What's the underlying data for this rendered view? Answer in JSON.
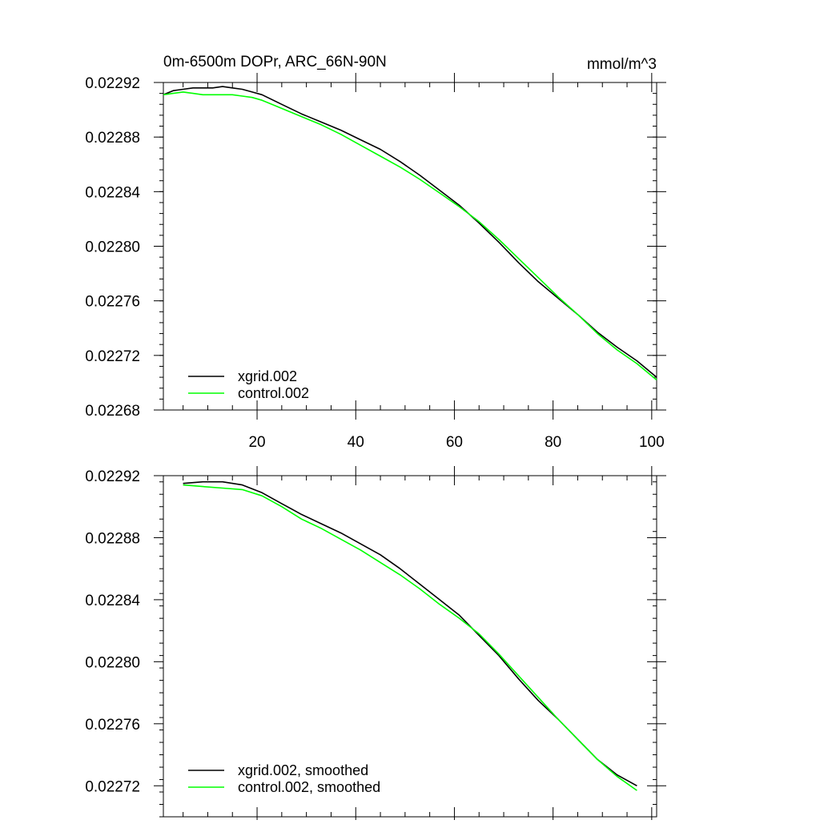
{
  "chart_data": [
    {
      "type": "line",
      "title": "0m-6500m DOPr, ARC_66N-90N",
      "units": "mmol/m^3",
      "xlabel": "",
      "ylabel": "",
      "xlim": [
        1,
        101
      ],
      "ylim": [
        0.02268,
        0.02292
      ],
      "xticks": [
        20,
        40,
        60,
        80,
        100
      ],
      "xtick_labels": [
        "20",
        "40",
        "60",
        "80",
        "100"
      ],
      "yticks": [
        0.02268,
        0.02272,
        0.02276,
        0.0228,
        0.02284,
        0.02288,
        0.02292
      ],
      "ytick_labels": [
        "0.02268",
        "0.02272",
        "0.02276",
        "0.02280",
        "0.02284",
        "0.02288",
        "0.02292"
      ],
      "legend": "bottom-left",
      "series": [
        {
          "name": "xgrid.002",
          "color": "#000000",
          "x": [
            1,
            3,
            5,
            7,
            9,
            11,
            13,
            15,
            17,
            19,
            21,
            25,
            29,
            33,
            37,
            41,
            45,
            49,
            53,
            57,
            61,
            65,
            69,
            73,
            77,
            81,
            85,
            89,
            93,
            97,
            101
          ],
          "y": [
            0.022911,
            0.022914,
            0.022915,
            0.022916,
            0.022916,
            0.022916,
            0.022917,
            0.022916,
            0.022915,
            0.022913,
            0.022911,
            0.022904,
            0.022897,
            0.022891,
            0.022885,
            0.022878,
            0.022871,
            0.022862,
            0.022852,
            0.022841,
            0.02283,
            0.022817,
            0.022803,
            0.022788,
            0.022774,
            0.022762,
            0.02275,
            0.022737,
            0.022726,
            0.022716,
            0.022704
          ]
        },
        {
          "name": "control.002",
          "color": "#00ff00",
          "x": [
            1,
            3,
            5,
            7,
            9,
            11,
            13,
            15,
            17,
            19,
            21,
            25,
            29,
            33,
            37,
            41,
            45,
            49,
            53,
            57,
            61,
            65,
            69,
            73,
            77,
            81,
            85,
            89,
            93,
            97,
            101
          ],
          "y": [
            0.022911,
            0.022912,
            0.022913,
            0.022912,
            0.022911,
            0.022911,
            0.022911,
            0.022911,
            0.02291,
            0.022909,
            0.022907,
            0.022901,
            0.022895,
            0.022889,
            0.022882,
            0.022874,
            0.022866,
            0.022858,
            0.022849,
            0.022839,
            0.022829,
            0.022818,
            0.022805,
            0.022791,
            0.022777,
            0.022763,
            0.02275,
            0.022736,
            0.022724,
            0.022714,
            0.022702
          ]
        }
      ]
    },
    {
      "type": "line",
      "title": "",
      "xlabel": "",
      "ylabel": "",
      "xlim": [
        1,
        101
      ],
      "ylim": [
        0.0227,
        0.02292
      ],
      "xticks": [
        20,
        40,
        60,
        80,
        100
      ],
      "xtick_labels": [],
      "yticks": [
        0.02272,
        0.02276,
        0.0228,
        0.02284,
        0.02288,
        0.02292
      ],
      "ytick_labels": [
        "0.02272",
        "0.02276",
        "0.02280",
        "0.02284",
        "0.02288",
        "0.02292"
      ],
      "legend": "bottom-left",
      "series": [
        {
          "name": "xgrid.002, smoothed",
          "color": "#000000",
          "x": [
            5,
            9,
            13,
            17,
            21,
            25,
            29,
            33,
            37,
            41,
            45,
            49,
            53,
            57,
            61,
            65,
            69,
            73,
            77,
            81,
            85,
            89,
            93,
            97
          ],
          "y": [
            0.022915,
            0.022916,
            0.022916,
            0.022914,
            0.022909,
            0.022902,
            0.022895,
            0.022889,
            0.022883,
            0.022876,
            0.022869,
            0.02286,
            0.02285,
            0.02284,
            0.02283,
            0.022817,
            0.022804,
            0.022789,
            0.022775,
            0.022763,
            0.02275,
            0.022737,
            0.022727,
            0.02272
          ]
        },
        {
          "name": "control.002, smoothed",
          "color": "#00ff00",
          "x": [
            5,
            9,
            13,
            17,
            21,
            25,
            29,
            33,
            37,
            41,
            45,
            49,
            53,
            57,
            61,
            65,
            69,
            73,
            77,
            81,
            85,
            89,
            93,
            97
          ],
          "y": [
            0.022914,
            0.022913,
            0.022912,
            0.022911,
            0.022907,
            0.0229,
            0.022892,
            0.022886,
            0.022879,
            0.022872,
            0.022864,
            0.022856,
            0.022847,
            0.022837,
            0.022828,
            0.022818,
            0.022805,
            0.022791,
            0.022777,
            0.022763,
            0.02275,
            0.022737,
            0.022726,
            0.022717
          ]
        }
      ]
    }
  ]
}
